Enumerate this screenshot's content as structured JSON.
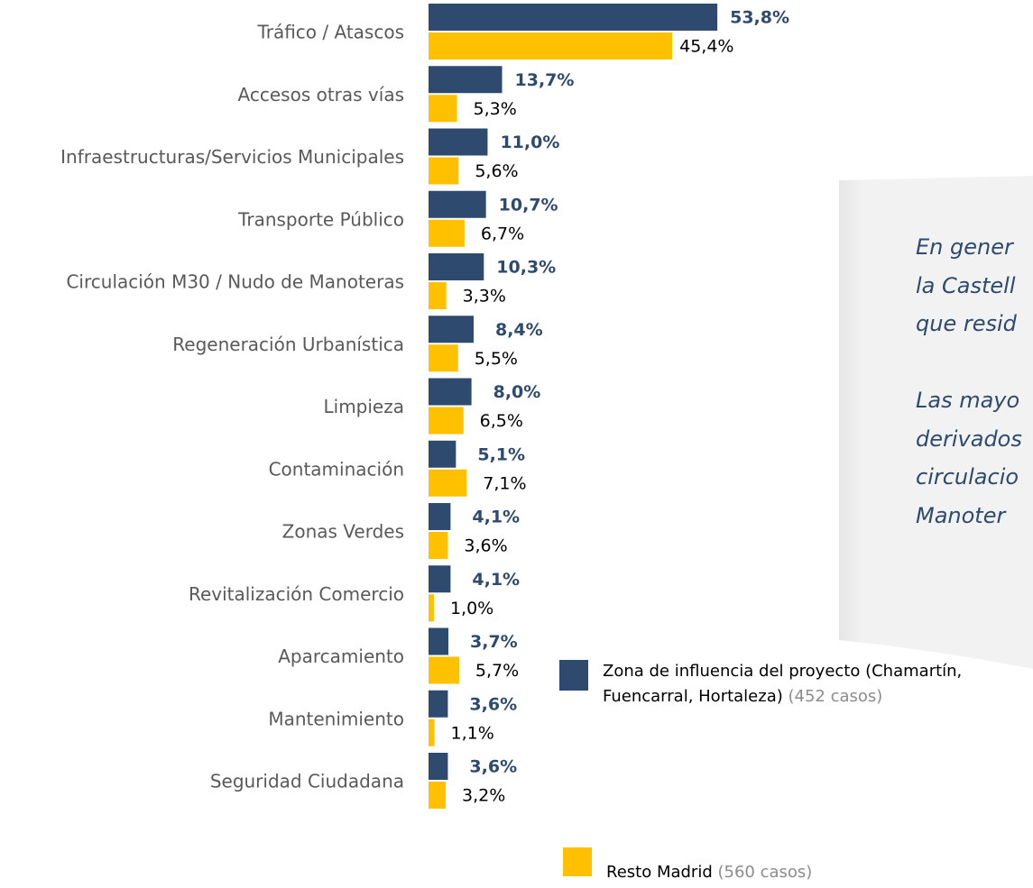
{
  "chart_data": {
    "type": "bar",
    "orientation": "horizontal",
    "categories": [
      "Tráfico / Atascos",
      "Accesos otras vías",
      "Infraestructuras/Servicios Municipales",
      "Transporte Público",
      "Circulación M30 / Nudo de Manoteras",
      "Regeneración Urbanística",
      "Limpieza",
      "Contaminación",
      "Zonas Verdes",
      "Revitalización Comercio",
      "Aparcamiento",
      "Mantenimiento",
      "Seguridad Ciudadana"
    ],
    "series": [
      {
        "name": "Zona de influencia del proyecto (Chamartín, Fuencarral, Hortaleza)",
        "note": "(452 casos)",
        "color": "#2e4a6e",
        "values": [
          53.8,
          13.7,
          11.0,
          10.7,
          10.3,
          8.4,
          8.0,
          5.1,
          4.1,
          4.1,
          3.7,
          3.6,
          3.6
        ],
        "value_labels": [
          "53,8%",
          "13,7%",
          "11,0%",
          "10,7%",
          "10,3%",
          "8,4%",
          "8,0%",
          "5,1%",
          "4,1%",
          "4,1%",
          "3,7%",
          "3,6%",
          "3,6%"
        ]
      },
      {
        "name": "Resto Madrid",
        "note": "(560 casos)",
        "color": "#ffc000",
        "values": [
          45.4,
          5.3,
          5.6,
          6.7,
          3.3,
          5.5,
          6.5,
          7.1,
          3.6,
          1.0,
          5.7,
          1.1,
          3.2
        ],
        "value_labels": [
          "45,4%",
          "5,3%",
          "5,6%",
          "6,7%",
          "3,3%",
          "5,5%",
          "6,5%",
          "7,1%",
          "3,6%",
          "1,0%",
          "5,7%",
          "1,1%",
          "3,2%"
        ]
      }
    ],
    "annotation_lines": [
      "En gener",
      "la Castell",
      "que resid",
      "Las mayo",
      "derivados",
      "circulacio",
      "Manoter"
    ]
  }
}
